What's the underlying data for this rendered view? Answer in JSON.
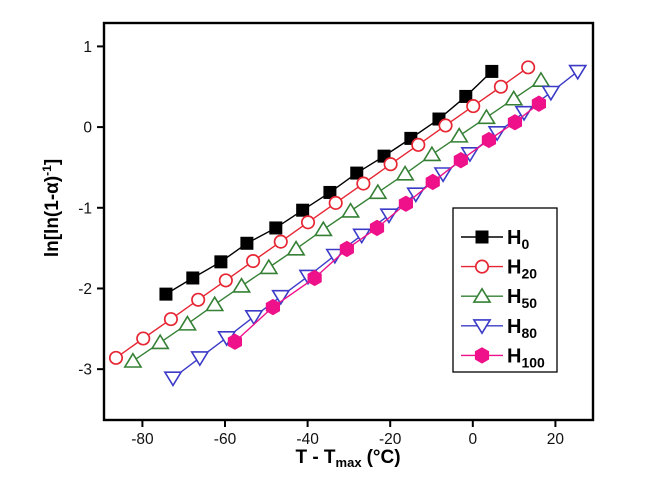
{
  "figure": {
    "background": "#ffffff",
    "frame_color": "#000000",
    "tick_label_color": "#111111"
  },
  "chart_data": {
    "type": "line",
    "title": "",
    "xlabel": {
      "pre": "T - T",
      "sub": "max",
      "post": "(°C)"
    },
    "ylabel": {
      "pre": "ln[ln(1-α)",
      "sup": "-1",
      "post": "]"
    },
    "xlim": [
      -89.3,
      29.1
    ],
    "ylim": [
      -3.63,
      1.29
    ],
    "grid": false,
    "xticks": {
      "values": [
        -80,
        -60,
        -40,
        -20,
        0,
        20
      ],
      "labels": [
        "-80",
        "-60",
        "-40",
        "-20",
        "0",
        "20"
      ]
    },
    "yticks": {
      "values": [
        1,
        0,
        -1,
        -2,
        -3
      ],
      "labels": [
        "1",
        "0",
        "-1",
        "-2",
        "-3"
      ]
    },
    "legend": {
      "position": "inside-lower-right",
      "border_color": "#000000"
    },
    "series": [
      {
        "name": "H0",
        "label_main": "H",
        "label_sub": "0",
        "color": "#000000",
        "marker": "square-filled",
        "x": [
          -74.3,
          -67.8,
          -61.0,
          -54.7,
          -47.7,
          -41.2,
          -34.6,
          -28.1,
          -21.5,
          -15.0,
          -8.2,
          -1.7,
          4.6
        ],
        "y": [
          -2.07,
          -1.87,
          -1.67,
          -1.44,
          -1.25,
          -1.03,
          -0.81,
          -0.57,
          -0.36,
          -0.14,
          0.1,
          0.38,
          0.69
        ]
      },
      {
        "name": "H20",
        "label_main": "H",
        "label_sub": "20",
        "color": "#e62633",
        "marker": "circle-open",
        "x": [
          -86.4,
          -79.8,
          -73.1,
          -66.5,
          -59.8,
          -53.2,
          -46.5,
          -39.9,
          -33.2,
          -26.5,
          -19.9,
          -13.2,
          -6.6,
          0.1,
          6.8,
          13.4
        ],
        "y": [
          -2.86,
          -2.62,
          -2.38,
          -2.14,
          -1.9,
          -1.66,
          -1.42,
          -1.18,
          -0.94,
          -0.7,
          -0.46,
          -0.22,
          0.02,
          0.26,
          0.5,
          0.74
        ]
      },
      {
        "name": "H50",
        "label_main": "H",
        "label_sub": "50",
        "color": "#358035",
        "marker": "triangle-up-open",
        "x": [
          -82.3,
          -75.7,
          -69.1,
          -62.5,
          -56.0,
          -49.4,
          -42.8,
          -36.2,
          -29.6,
          -23.0,
          -16.4,
          -9.9,
          -3.3,
          3.3,
          9.9,
          16.5
        ],
        "y": [
          -2.9,
          -2.67,
          -2.44,
          -2.2,
          -1.97,
          -1.74,
          -1.51,
          -1.27,
          -1.04,
          -0.81,
          -0.58,
          -0.34,
          -0.11,
          0.12,
          0.35,
          0.58
        ]
      },
      {
        "name": "H80",
        "label_main": "H",
        "label_sub": "80",
        "color": "#3b3bc8",
        "marker": "triangle-down-open",
        "x": [
          -72.6,
          -66.1,
          -59.6,
          -53.0,
          -46.5,
          -39.9,
          -33.4,
          -26.9,
          -20.3,
          -13.8,
          -7.2,
          -0.7,
          5.9,
          12.4,
          18.9,
          25.4
        ],
        "y": [
          -3.11,
          -2.86,
          -2.61,
          -2.35,
          -2.1,
          -1.85,
          -1.59,
          -1.34,
          -1.09,
          -0.83,
          -0.58,
          -0.33,
          -0.07,
          0.18,
          0.43,
          0.69
        ]
      },
      {
        "name": "H100",
        "label_main": "H",
        "label_sub": "100",
        "color": "#ee1189",
        "marker": "hexagon-filled",
        "x": [
          -57.6,
          -48.4,
          -38.3,
          -30.5,
          -23.2,
          -16.2,
          -9.7,
          -2.9,
          3.9,
          10.2,
          16.0
        ],
        "y": [
          -2.66,
          -2.23,
          -1.87,
          -1.51,
          -1.25,
          -0.95,
          -0.68,
          -0.41,
          -0.16,
          0.06,
          0.29
        ]
      }
    ]
  }
}
